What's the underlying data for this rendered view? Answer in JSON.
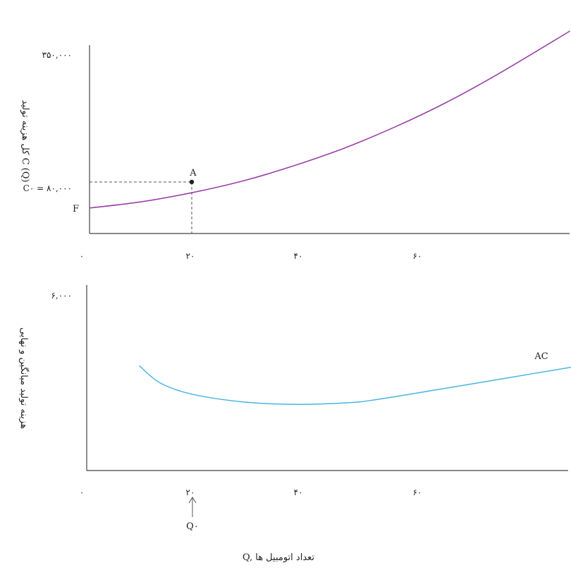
{
  "chart_data": [
    {
      "type": "line",
      "ylabel": "کل هزینه تولید C (Q)",
      "y_tick_labels": [
        "۳۵۰,۰۰۰",
        "C۰ = ۸۰,۰۰۰"
      ],
      "x_tick_labels": [
        "۰",
        "۲۰",
        "۴۰",
        "۶۰"
      ],
      "ylim": [
        0,
        350000
      ],
      "xlim": [
        0,
        95
      ],
      "series": [
        {
          "color": "#9b3fa8",
          "points": [
            [
              0,
              50000
            ],
            [
              10,
              62000
            ],
            [
              20,
              80000
            ],
            [
              30,
              103000
            ],
            [
              40,
              133000
            ],
            [
              50,
              168000
            ],
            [
              60,
              210000
            ],
            [
              70,
              258000
            ],
            [
              80,
              313000
            ],
            [
              94,
              397000
            ]
          ]
        }
      ],
      "point_labels": {
        "A": "A",
        "F": "F"
      },
      "marked_point": {
        "x": 20,
        "y": 80000
      },
      "fixed_cost_y": 50000
    },
    {
      "type": "line",
      "ylabel": "هزینه تولید میانگین و نهایی",
      "y_tick_labels": [
        "۶,۰۰۰"
      ],
      "x_tick_labels": [
        "۰",
        "۲۰",
        "۴۰",
        "۶۰"
      ],
      "ylim": [
        0,
        6000
      ],
      "xlim": [
        0,
        95
      ],
      "series": [
        {
          "name": "AC",
          "color": "#4ab4e0",
          "points": [
            [
              10,
              3580
            ],
            [
              14,
              2990
            ],
            [
              20,
              2610
            ],
            [
              30,
              2340
            ],
            [
              40,
              2260
            ],
            [
              50,
              2320
            ],
            [
              55,
              2420
            ],
            [
              65,
              2710
            ],
            [
              80,
              3160
            ],
            [
              94,
              3580
            ]
          ]
        }
      ],
      "annotation": "Q۰",
      "annotation_x": 20,
      "xlabel": "Q, تعداد اتومبیل ها"
    }
  ]
}
